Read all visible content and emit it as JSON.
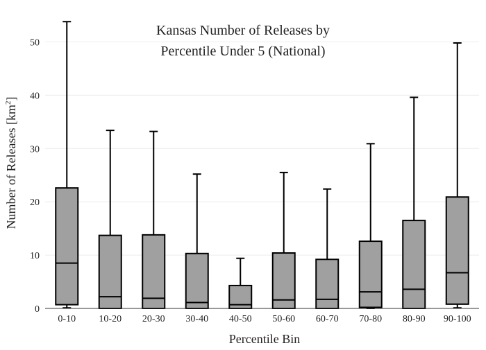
{
  "chart_data": {
    "type": "box",
    "title_lines": [
      "Kansas Number of Releases by",
      "Percentile Under 5 (National)"
    ],
    "xlabel": "Percentile Bin",
    "ylabel": "Number of Releases  [km",
    "ylabel_sup": "2",
    "ylabel_close": "]",
    "ylim": [
      0,
      55
    ],
    "yticks": [
      0,
      10,
      20,
      30,
      40,
      50
    ],
    "grid": true,
    "box_color": "#a0a0a0",
    "categories": [
      "0-10",
      "10-20",
      "20-30",
      "30-40",
      "40-50",
      "50-60",
      "60-70",
      "70-80",
      "80-90",
      "90-100"
    ],
    "boxes": [
      {
        "min": 0.1,
        "q1": 0.7,
        "median": 8.5,
        "q3": 22.6,
        "max": 53.8
      },
      {
        "min": 0.0,
        "q1": 0.0,
        "median": 2.2,
        "q3": 13.7,
        "max": 33.4
      },
      {
        "min": 0.0,
        "q1": 0.0,
        "median": 1.9,
        "q3": 13.8,
        "max": 33.2
      },
      {
        "min": 0.0,
        "q1": 0.0,
        "median": 1.1,
        "q3": 10.3,
        "max": 25.2
      },
      {
        "min": 0.0,
        "q1": 0.0,
        "median": 0.7,
        "q3": 4.3,
        "max": 9.4
      },
      {
        "min": 0.0,
        "q1": 0.0,
        "median": 1.6,
        "q3": 10.4,
        "max": 25.5
      },
      {
        "min": 0.0,
        "q1": 0.0,
        "median": 1.7,
        "q3": 9.2,
        "max": 22.4
      },
      {
        "min": 0.0,
        "q1": 0.2,
        "median": 3.1,
        "q3": 12.6,
        "max": 30.9
      },
      {
        "min": 0.0,
        "q1": 0.0,
        "median": 3.6,
        "q3": 16.5,
        "max": 39.6
      },
      {
        "min": 0.1,
        "q1": 0.8,
        "median": 6.7,
        "q3": 20.9,
        "max": 49.8
      }
    ]
  }
}
